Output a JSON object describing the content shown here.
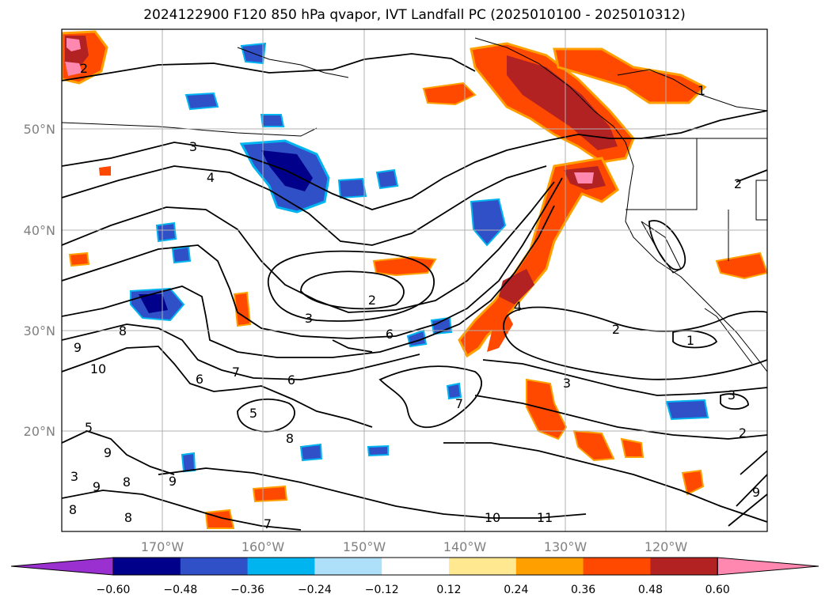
{
  "title": "2024122900 F120 850 hPa qvapor, IVT Landfall PC (2025010100 - 2025010312)",
  "lat_ticks": [
    {
      "value": 50,
      "label": "50°N"
    },
    {
      "value": 40,
      "label": "40°N"
    },
    {
      "value": 30,
      "label": "30°N"
    },
    {
      "value": 20,
      "label": "20°N"
    }
  ],
  "lon_ticks": [
    {
      "value": -170,
      "label": "170°W"
    },
    {
      "value": -160,
      "label": "160°W"
    },
    {
      "value": -150,
      "label": "150°W"
    },
    {
      "value": -140,
      "label": "140°W"
    },
    {
      "value": -130,
      "label": "130°W"
    },
    {
      "value": -120,
      "label": "120°W"
    }
  ],
  "colorbar": {
    "labels": [
      "−0.60",
      "−0.48",
      "−0.36",
      "−0.24",
      "−0.12",
      "0.12",
      "0.24",
      "0.36",
      "0.48",
      "0.60"
    ],
    "colors": [
      "#9b30d0",
      "#00008b",
      "#3050c8",
      "#00b4f0",
      "#aee0fa",
      "#ffffff",
      "#ffe890",
      "#ffa000",
      "#ff4800",
      "#b22222",
      "#ff88b0"
    ]
  },
  "contour_labels": [
    "2",
    "3",
    "4",
    "2",
    "3",
    "6",
    "2",
    "8",
    "9",
    "10",
    "6",
    "7",
    "6",
    "5",
    "8",
    "9",
    "8",
    "9",
    "9",
    "8",
    "8",
    "7",
    "10",
    "11",
    "3",
    "4",
    "3",
    "2",
    "1",
    "7",
    "1",
    "2",
    "3",
    "5",
    "9"
  ]
}
